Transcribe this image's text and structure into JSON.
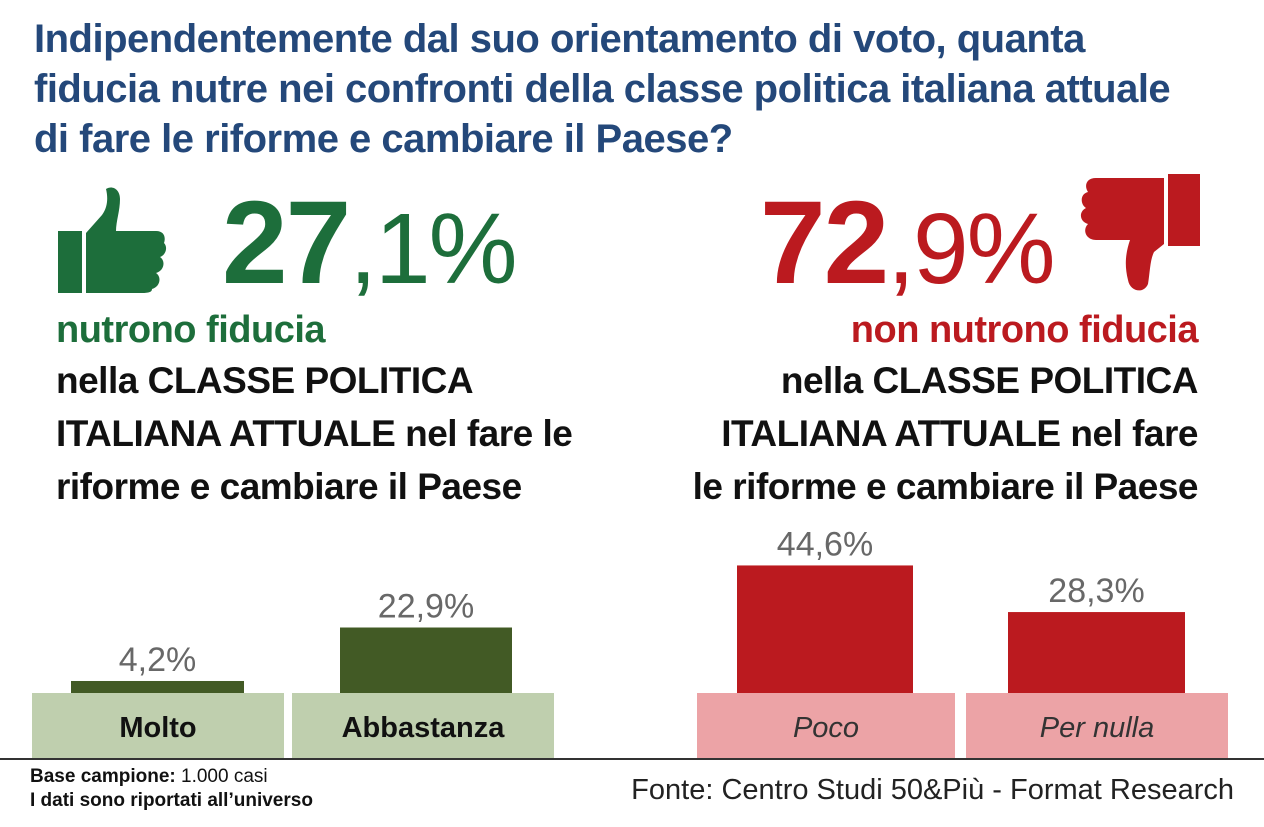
{
  "title": "Indipendentemente dal suo orientamento di voto, quanta\nfiducia nutre nei confronti della classe politica italiana attuale\ndi fare le riforme e cambiare il Paese?",
  "trust": {
    "pct_int": "27",
    "pct_dec": ",1%",
    "lead": "nutrono fiducia",
    "description": "nella CLASSE POLITICA\nITALIANA ATTUALE nel fare le\nriforme e cambiare il Paese",
    "color": "#1d6e3b",
    "icon": "thumbs-up-icon"
  },
  "distrust": {
    "pct_int": "72",
    "pct_dec": ",9%",
    "lead": "non nutrono fiducia",
    "description": "nella CLASSE POLITICA\nITALIANA ATTUALE nel fare\nle riforme e cambiare il Paese",
    "color": "#bb1a1f",
    "icon": "thumbs-down-icon"
  },
  "chart_data": {
    "type": "bar",
    "categories": [
      "Molto",
      "Abbastanza",
      "Poco",
      "Per nulla"
    ],
    "values": [
      4.2,
      22.9,
      44.6,
      28.3
    ],
    "value_labels": [
      "4,2%",
      "22,9%",
      "44,6%",
      "28,3%"
    ],
    "groups": [
      "trust",
      "trust",
      "distrust",
      "distrust"
    ],
    "colors": {
      "trust_bar": "#425a25",
      "trust_base": "#bfcfae",
      "distrust_bar": "#bb1a1f",
      "distrust_base": "#eca3a6"
    }
  },
  "footer": {
    "base_label": "Base campione:",
    "base_value": "1.000 casi",
    "note": "I dati sono riportati all’universo",
    "source": "Fonte: Centro Studi 50&Più - Format Research"
  }
}
